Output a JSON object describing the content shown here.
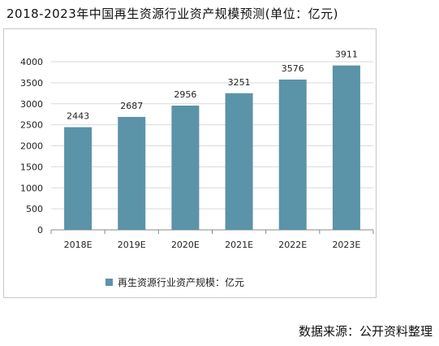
{
  "page": {
    "title": "2018-2023年中国再生资源行业资产规模预测(单位：亿元)",
    "source": "数据来源：公开资料整理"
  },
  "colors": {
    "bar": "#5b93a8",
    "grid": "#d9d9d9",
    "axis": "#888888"
  },
  "chart_data": {
    "type": "bar",
    "title": "",
    "categories": [
      "2018E",
      "2019E",
      "2020E",
      "2021E",
      "2022E",
      "2023E"
    ],
    "series": [
      {
        "name": "再生资源行业资产规模：亿元",
        "values": [
          2443,
          2687,
          2956,
          3251,
          3576,
          3911
        ]
      }
    ],
    "ylim": [
      0,
      4000
    ],
    "yticks": [
      0,
      500,
      1000,
      1500,
      2000,
      2500,
      3000,
      3500,
      4000
    ],
    "grid": true,
    "legend": "bottom",
    "data_labels": true
  }
}
